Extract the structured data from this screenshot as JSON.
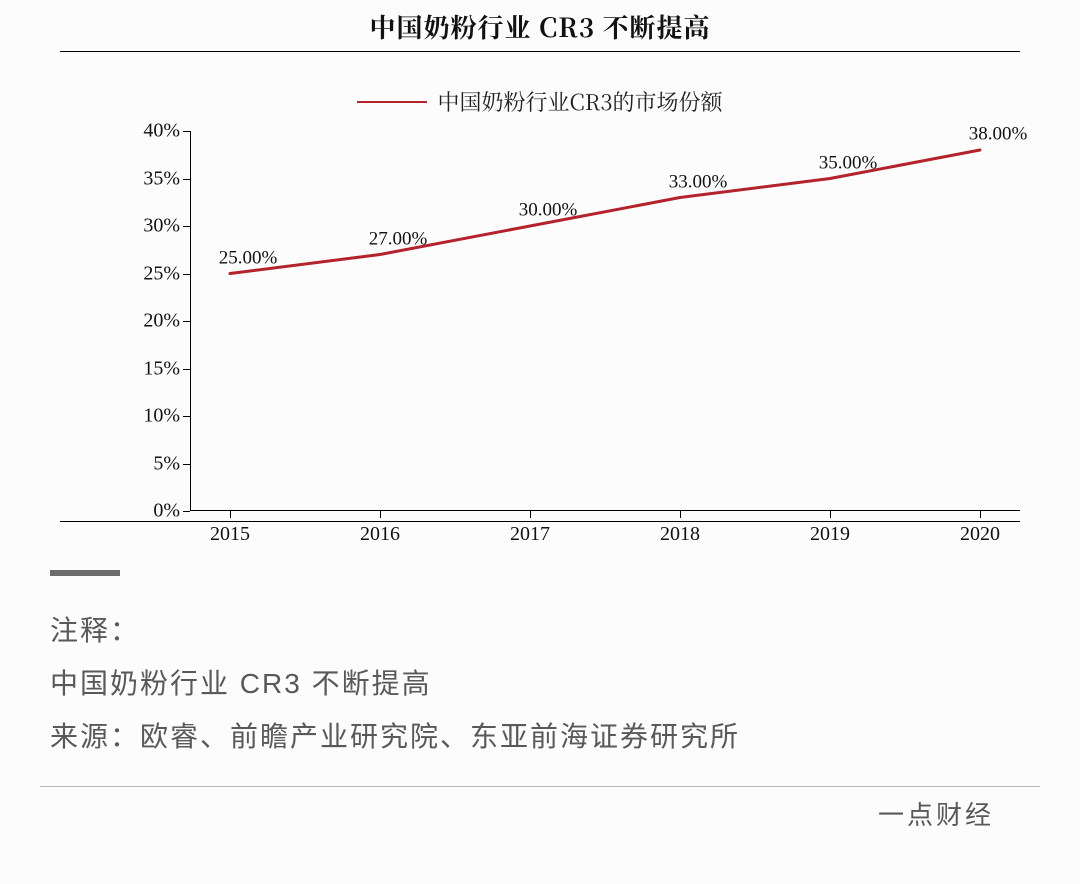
{
  "title": "中国奶粉行业 CR3 不断提高",
  "legend_label": "中国奶粉行业CR3的市场份额",
  "chart": {
    "type": "line",
    "line_color": "#b4222b",
    "line_width": 3,
    "background_color": "#fcfcfc",
    "axis_color": "#000000",
    "text_color": "#111111",
    "title_fontsize": 26,
    "tick_fontsize": 20,
    "label_fontsize": 19,
    "ylim": [
      0,
      40
    ],
    "ytick_step": 5,
    "y_ticks": [
      "0%",
      "5%",
      "10%",
      "15%",
      "20%",
      "25%",
      "30%",
      "35%",
      "40%"
    ],
    "categories": [
      "2015",
      "2016",
      "2017",
      "2018",
      "2019",
      "2020"
    ],
    "values": [
      25.0,
      27.0,
      30.0,
      33.0,
      35.0,
      38.0
    ],
    "value_labels": [
      "25.00%",
      "27.00%",
      "30.00%",
      "33.00%",
      "35.00%",
      "38.00%"
    ]
  },
  "caption": {
    "heading": "注释：",
    "line1": "中国奶粉行业 CR3 不断提高",
    "source_label": "来源：",
    "source_text": "欧睿、前瞻产业研究院、东亚前海证券研究所"
  },
  "brand": "一点财经"
}
